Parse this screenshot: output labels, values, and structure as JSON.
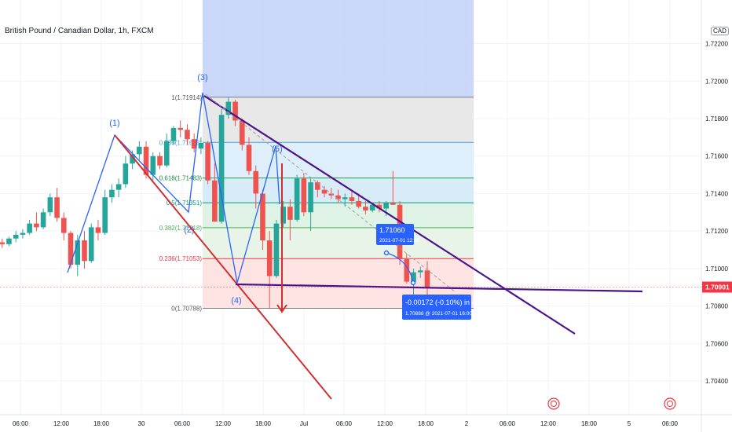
{
  "title": "British Pound / Canadian Dollar, 1h, FXCM",
  "currency_badge": "CAD",
  "colors": {
    "bull": "#26a69a",
    "bear": "#ef5350",
    "red_line": "#d32f2f",
    "purple_line": "#4a148c",
    "wave_line": "#2962ff",
    "price_label": "#f23645",
    "info_box": "#2962ff"
  },
  "chart_data": {
    "type": "candlestick",
    "ylim": [
      1.7025,
      1.7235
    ],
    "y_ticks": [
      "1.72200",
      "1.72000",
      "1.71800",
      "1.71600",
      "1.71400",
      "1.71200",
      "1.71000",
      "1.70800",
      "1.70600",
      "1.70400"
    ],
    "x_ticks": [
      "06:00",
      "12:00",
      "18:00",
      "30",
      "06:00",
      "12:00",
      "18:00",
      "Jul",
      "06:00",
      "12:00",
      "18:00",
      "2",
      "06:00",
      "12:00",
      "18:00",
      "5",
      "06:00"
    ],
    "last_price": "1.70901",
    "candles": [
      [
        1.7115,
        1.7118,
        1.7113,
        1.7114
      ],
      [
        1.7114,
        1.7116,
        1.7111,
        1.7113
      ],
      [
        1.7113,
        1.7117,
        1.7112,
        1.7116
      ],
      [
        1.7116,
        1.712,
        1.7114,
        1.7118
      ],
      [
        1.7118,
        1.7121,
        1.7116,
        1.7119
      ],
      [
        1.7119,
        1.7126,
        1.7118,
        1.7124
      ],
      [
        1.7124,
        1.713,
        1.712,
        1.7122
      ],
      [
        1.7122,
        1.7132,
        1.7121,
        1.713
      ],
      [
        1.713,
        1.714,
        1.7128,
        1.7138
      ],
      [
        1.7138,
        1.7143,
        1.7125,
        1.7127
      ],
      [
        1.7127,
        1.713,
        1.7115,
        1.7119
      ],
      [
        1.7119,
        1.712,
        1.71,
        1.7102
      ],
      [
        1.7102,
        1.7118,
        1.7096,
        1.7115
      ],
      [
        1.7115,
        1.712,
        1.71,
        1.7104
      ],
      [
        1.7104,
        1.7124,
        1.7103,
        1.7122
      ],
      [
        1.7122,
        1.7126,
        1.7115,
        1.7119
      ],
      [
        1.7119,
        1.7142,
        1.7118,
        1.7138
      ],
      [
        1.7138,
        1.7145,
        1.7135,
        1.7142
      ],
      [
        1.7142,
        1.7148,
        1.7138,
        1.7145
      ],
      [
        1.7145,
        1.716,
        1.7143,
        1.7156
      ],
      [
        1.7156,
        1.7163,
        1.7153,
        1.7161
      ],
      [
        1.7161,
        1.7168,
        1.7158,
        1.7165
      ],
      [
        1.7165,
        1.7168,
        1.7148,
        1.715
      ],
      [
        1.715,
        1.7162,
        1.7147,
        1.716
      ],
      [
        1.716,
        1.7162,
        1.7153,
        1.7155
      ],
      [
        1.7155,
        1.7172,
        1.7154,
        1.7168
      ],
      [
        1.7168,
        1.7176,
        1.7166,
        1.7175
      ],
      [
        1.7175,
        1.7179,
        1.717,
        1.7174
      ],
      [
        1.7174,
        1.7177,
        1.7166,
        1.7169
      ],
      [
        1.7169,
        1.7172,
        1.7162,
        1.7164
      ],
      [
        1.7164,
        1.717,
        1.7161,
        1.7167
      ],
      [
        1.7167,
        1.7168,
        1.7145,
        1.7147
      ],
      [
        1.7147,
        1.7156,
        1.7126,
        1.7125
      ],
      [
        1.7125,
        1.7185,
        1.7124,
        1.7182
      ],
      [
        1.7182,
        1.71914,
        1.718,
        1.7189
      ],
      [
        1.7189,
        1.719,
        1.7176,
        1.7179
      ],
      [
        1.7179,
        1.718,
        1.7163,
        1.7166
      ],
      [
        1.7166,
        1.717,
        1.715,
        1.7152
      ],
      [
        1.7152,
        1.7155,
        1.7132,
        1.714
      ],
      [
        1.714,
        1.7142,
        1.711,
        1.7115
      ],
      [
        1.7115,
        1.712,
        1.70788,
        1.7096
      ],
      [
        1.7096,
        1.7126,
        1.7095,
        1.7124
      ],
      [
        1.7124,
        1.7136,
        1.7122,
        1.7133
      ],
      [
        1.7133,
        1.7137,
        1.7115,
        1.7126
      ],
      [
        1.7126,
        1.715,
        1.7125,
        1.7148
      ],
      [
        1.7148,
        1.7151,
        1.7128,
        1.713
      ],
      [
        1.713,
        1.7148,
        1.712,
        1.7146
      ],
      [
        1.7146,
        1.7147,
        1.7138,
        1.7142
      ],
      [
        1.7142,
        1.7144,
        1.7138,
        1.714
      ],
      [
        1.714,
        1.7143,
        1.7137,
        1.7139
      ],
      [
        1.7139,
        1.7142,
        1.7135,
        1.7137
      ],
      [
        1.7137,
        1.714,
        1.7133,
        1.7138
      ],
      [
        1.7138,
        1.7141,
        1.7134,
        1.7136
      ],
      [
        1.7136,
        1.714,
        1.7132,
        1.7133
      ],
      [
        1.7133,
        1.7136,
        1.7129,
        1.7131
      ],
      [
        1.7131,
        1.7135,
        1.713,
        1.7134
      ],
      [
        1.7134,
        1.7136,
        1.713,
        1.7132
      ],
      [
        1.7132,
        1.7136,
        1.7128,
        1.7135
      ],
      [
        1.7135,
        1.7152,
        1.7134,
        1.7134
      ],
      [
        1.7134,
        1.7136,
        1.7102,
        1.7105
      ],
      [
        1.7105,
        1.7108,
        1.7092,
        1.7093
      ],
      [
        1.7093,
        1.71,
        1.708,
        1.7098
      ],
      [
        1.7098,
        1.7101,
        1.7095,
        1.7099
      ],
      [
        1.7099,
        1.7104,
        1.7081,
        1.709
      ]
    ],
    "fibonacci": [
      {
        "label": "1(1.71914)",
        "value": 1.71914
      },
      {
        "label": "0.786(1.71673)",
        "value": 1.71673
      },
      {
        "label": "0.618(1.71483)",
        "value": 1.71483
      },
      {
        "label": "0.5(1.71351)",
        "value": 1.71351
      },
      {
        "label": "0.382(1.71218)",
        "value": 1.71218
      },
      {
        "label": "0.236(1.71053)",
        "value": 1.71053
      },
      {
        "label": "0(1.70788)",
        "value": 1.70788
      }
    ],
    "wave_labels": [
      "(1)",
      "(2)",
      "(3)",
      "(4)",
      "(5)"
    ],
    "projection": {
      "target_price": "1.71060",
      "target_time": "2021-07-01 12:00",
      "change": "-0.00172 (-0.10%) in 4h",
      "end": "1.70888 @ 2021-07-01  16:00"
    }
  }
}
